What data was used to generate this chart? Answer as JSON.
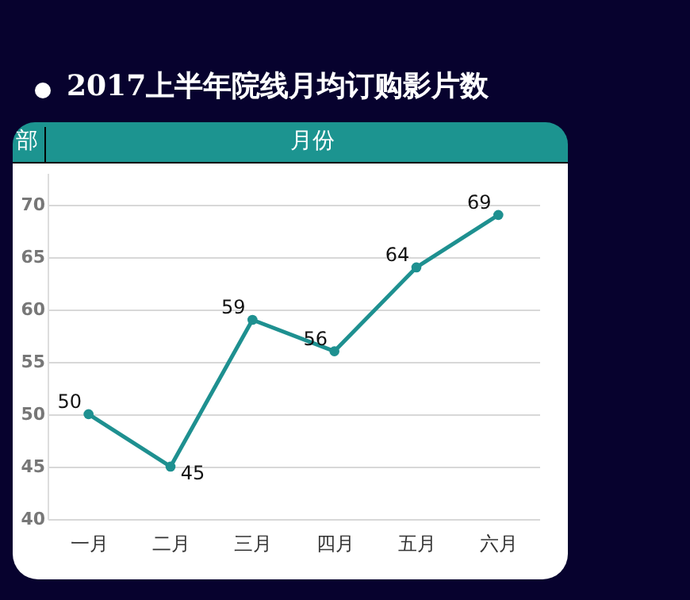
{
  "chart_data": {
    "type": "line",
    "title": "2017上半年院线月均订购影片数",
    "xlabel": "月份",
    "ylabel": "部",
    "categories": [
      "一月",
      "二月",
      "三月",
      "四月",
      "五月",
      "六月"
    ],
    "series": [
      {
        "color": "#1e9090",
        "values": [
          50,
          45,
          59,
          56,
          64,
          69
        ]
      }
    ],
    "ylim": [
      40,
      73
    ],
    "yticks": [
      40,
      45,
      50,
      55,
      60,
      65,
      70
    ],
    "grid": "y",
    "marker": "circle",
    "data_labels": true
  }
}
